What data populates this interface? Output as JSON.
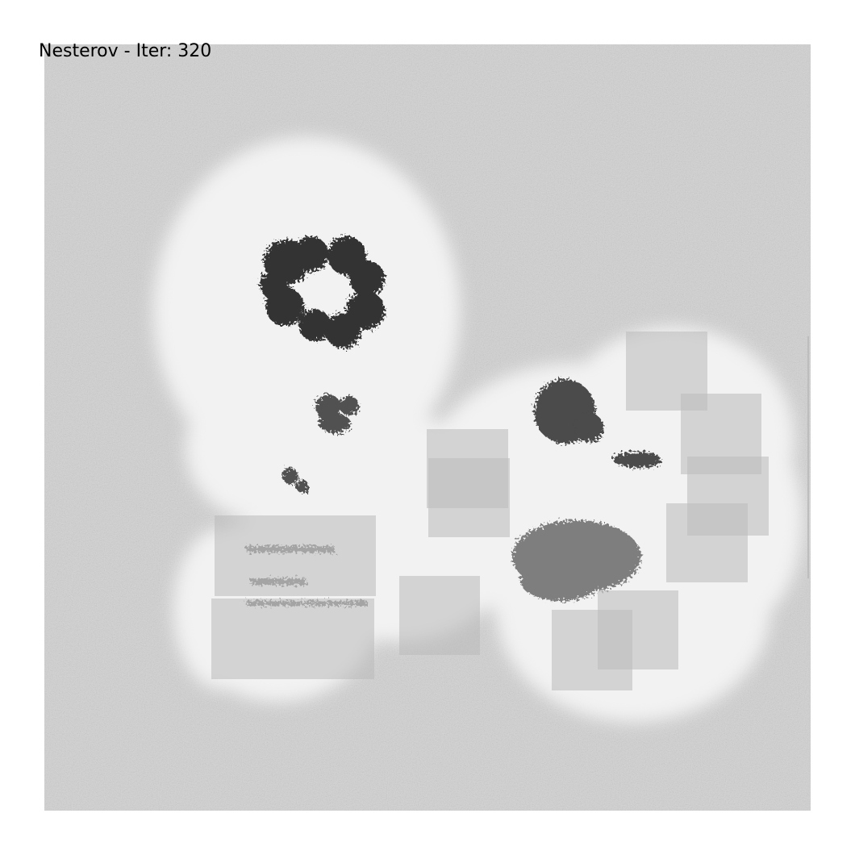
{
  "header": {
    "title": "Nesterov - Iter: 320"
  },
  "colors": {
    "background_noise": "#d2d2d2",
    "halo": "#f2f2f2",
    "clusters": "#1e1e1e",
    "boxes": "#b9b9b9"
  },
  "plot": {
    "description_free": true
  }
}
